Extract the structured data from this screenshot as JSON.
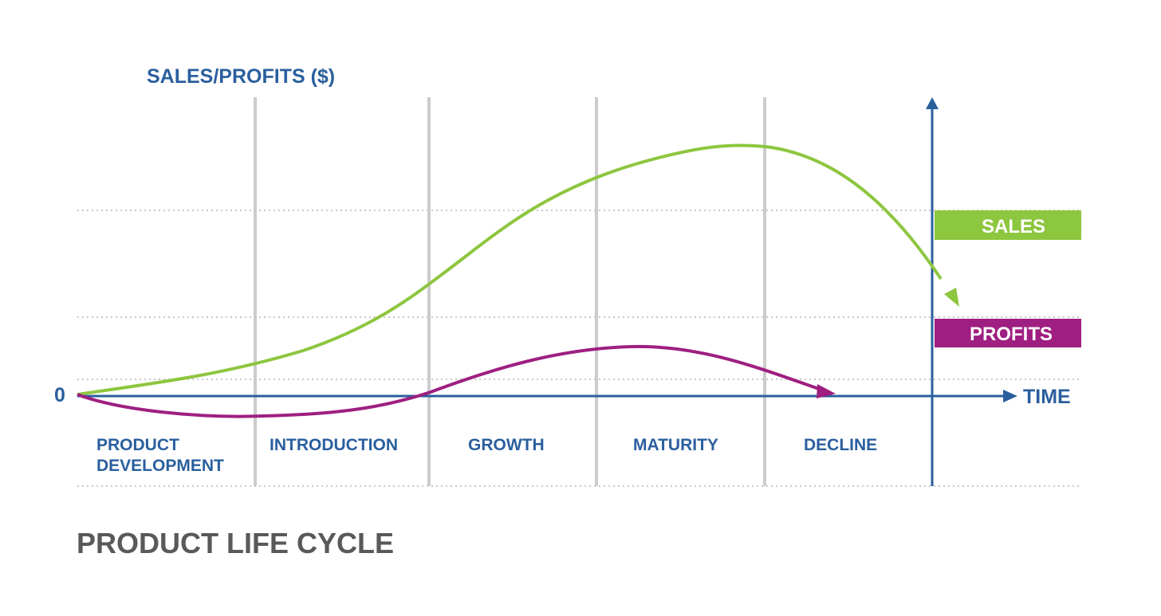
{
  "diagram": {
    "y_axis_label": "SALES/PROFITS ($)",
    "origin_label": "0",
    "x_axis_label": "TIME",
    "title": "PRODUCT LIFE CYCLE",
    "stages": [
      {
        "lines": [
          "PRODUCT",
          "DEVELOPMENT"
        ]
      },
      {
        "lines": [
          "INTRODUCTION"
        ]
      },
      {
        "lines": [
          "GROWTH"
        ]
      },
      {
        "lines": [
          "MATURITY"
        ]
      },
      {
        "lines": [
          "DECLINE"
        ]
      }
    ],
    "legend": {
      "sales": {
        "label": "SALES",
        "color": "#8dc63f"
      },
      "profits": {
        "label": "PROFITS",
        "color": "#9e1f81"
      }
    },
    "colors": {
      "axis": "#2a5f9e",
      "stage_divider": "#cccccc",
      "gridline": "#c8c8c8",
      "title": "#58595b"
    }
  }
}
